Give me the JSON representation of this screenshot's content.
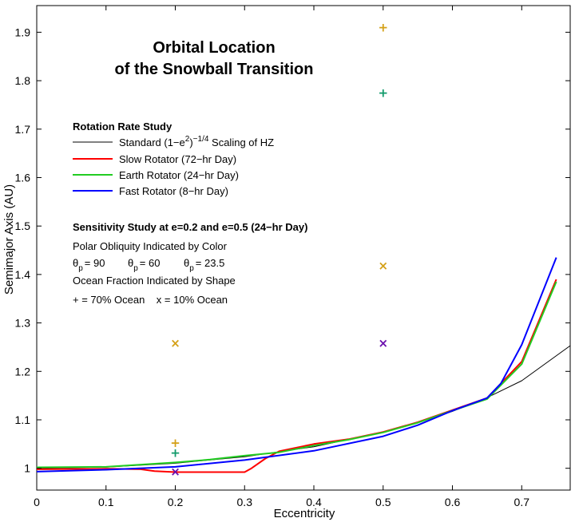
{
  "chart_data": {
    "type": "line",
    "title": [
      "Orbital Location",
      "of the Snowball Transition"
    ],
    "xlabel": "Eccentricity",
    "ylabel": "Semimajor Axis (AU)",
    "xlim": [
      0,
      0.77
    ],
    "ylim": [
      0.955,
      1.955
    ],
    "xticks": [
      0,
      0.1,
      0.2,
      0.3,
      0.4,
      0.5,
      0.6,
      0.7
    ],
    "yticks": [
      1,
      1.1,
      1.2,
      1.3,
      1.4,
      1.5,
      1.6,
      1.7,
      1.8,
      1.9
    ],
    "xtick_labels": [
      "0",
      "0.1",
      "0.2",
      "0.3",
      "0.4",
      "0.5",
      "0.6",
      "0.7"
    ],
    "ytick_labels": [
      "1",
      "1.1",
      "1.2",
      "1.3",
      "1.4",
      "1.5",
      "1.6",
      "1.7",
      "1.8",
      "1.9"
    ],
    "grid": false,
    "legend": {
      "heading": "Rotation Rate Study",
      "entries": [
        {
          "label_pre": "Standard (1−e",
          "label_sup1": "2",
          "label_mid": ")",
          "label_sup2": "−1/4",
          "label_post": " Scaling of HZ",
          "color": "#000000"
        },
        {
          "label": "Slow Rotator (72−hr Day)",
          "color": "#ff0000"
        },
        {
          "label": "Earth Rotator (24−hr Day)",
          "color": "#22cc22"
        },
        {
          "label": "Fast Rotator (8−hr Day)",
          "color": "#0000ff"
        }
      ]
    },
    "sensitivity": {
      "heading": "Sensitivity Study at e=0.2 and e=0.5 (24−hr Day)",
      "obliquity_label": "Polar Obliquity Indicated by Color",
      "theta_symbol": "θ",
      "theta_sub": "p",
      "obliquities": [
        {
          "value": "= 90",
          "color": "#d4a017"
        },
        {
          "value": "= 60",
          "color": "#109a6a"
        },
        {
          "value": "= 23.5",
          "color": "#6a0dad"
        }
      ],
      "ocean_label": "Ocean Fraction Indicated by Shape",
      "shape_legend": "+ = 70% Ocean    x = 10% Ocean"
    },
    "series": [
      {
        "name": "Standard (1−e²)⁻¹ᐟ⁴ Scaling of HZ",
        "color": "#000000",
        "width": 1,
        "x": [
          0,
          0.1,
          0.2,
          0.3,
          0.4,
          0.5,
          0.55,
          0.6,
          0.65,
          0.7,
          0.77
        ],
        "y": [
          1.0,
          1.0025,
          1.0103,
          1.0239,
          1.0445,
          1.0746,
          1.094,
          1.1174,
          1.1458,
          1.1807,
          1.2531
        ]
      },
      {
        "name": "Slow Rotator (72−hr Day)",
        "color": "#ff0000",
        "width": 2,
        "x": [
          0,
          0.1,
          0.15,
          0.17,
          0.2,
          0.25,
          0.3,
          0.31,
          0.33,
          0.35,
          0.4,
          0.45,
          0.5,
          0.55,
          0.6,
          0.65,
          0.7,
          0.75
        ],
        "y": [
          0.998,
          0.999,
          0.998,
          0.994,
          0.992,
          0.992,
          0.992,
          1.0,
          1.02,
          1.035,
          1.05,
          1.06,
          1.075,
          1.095,
          1.12,
          1.145,
          1.22,
          1.39
        ]
      },
      {
        "name": "Earth Rotator (24−hr Day)",
        "color": "#22cc22",
        "width": 2,
        "x": [
          0,
          0.1,
          0.2,
          0.25,
          0.3,
          0.35,
          0.4,
          0.45,
          0.5,
          0.55,
          0.6,
          0.65,
          0.7,
          0.75
        ],
        "y": [
          1.002,
          1.003,
          1.012,
          1.018,
          1.026,
          1.033,
          1.047,
          1.059,
          1.074,
          1.094,
          1.119,
          1.143,
          1.215,
          1.385
        ]
      },
      {
        "name": "Fast Rotator (8−hr Day)",
        "color": "#0000ff",
        "width": 2,
        "x": [
          0,
          0.1,
          0.2,
          0.3,
          0.4,
          0.5,
          0.55,
          0.6,
          0.65,
          0.67,
          0.7,
          0.75
        ],
        "y": [
          0.993,
          0.997,
          1.003,
          1.017,
          1.036,
          1.066,
          1.089,
          1.119,
          1.145,
          1.175,
          1.255,
          1.435
        ]
      }
    ],
    "markers": [
      {
        "x": 0.2,
        "y": 1.052,
        "shape": "+",
        "color": "#d4a017"
      },
      {
        "x": 0.2,
        "y": 1.032,
        "shape": "+",
        "color": "#109a6a"
      },
      {
        "x": 0.2,
        "y": 1.258,
        "shape": "x",
        "color": "#d4a017"
      },
      {
        "x": 0.2,
        "y": 0.993,
        "shape": "x",
        "color": "#6a0dad"
      },
      {
        "x": 0.5,
        "y": 1.91,
        "shape": "+",
        "color": "#d4a017"
      },
      {
        "x": 0.5,
        "y": 1.775,
        "shape": "+",
        "color": "#109a6a"
      },
      {
        "x": 0.5,
        "y": 1.418,
        "shape": "x",
        "color": "#d4a017"
      },
      {
        "x": 0.5,
        "y": 1.258,
        "shape": "x",
        "color": "#6a0dad"
      }
    ]
  }
}
